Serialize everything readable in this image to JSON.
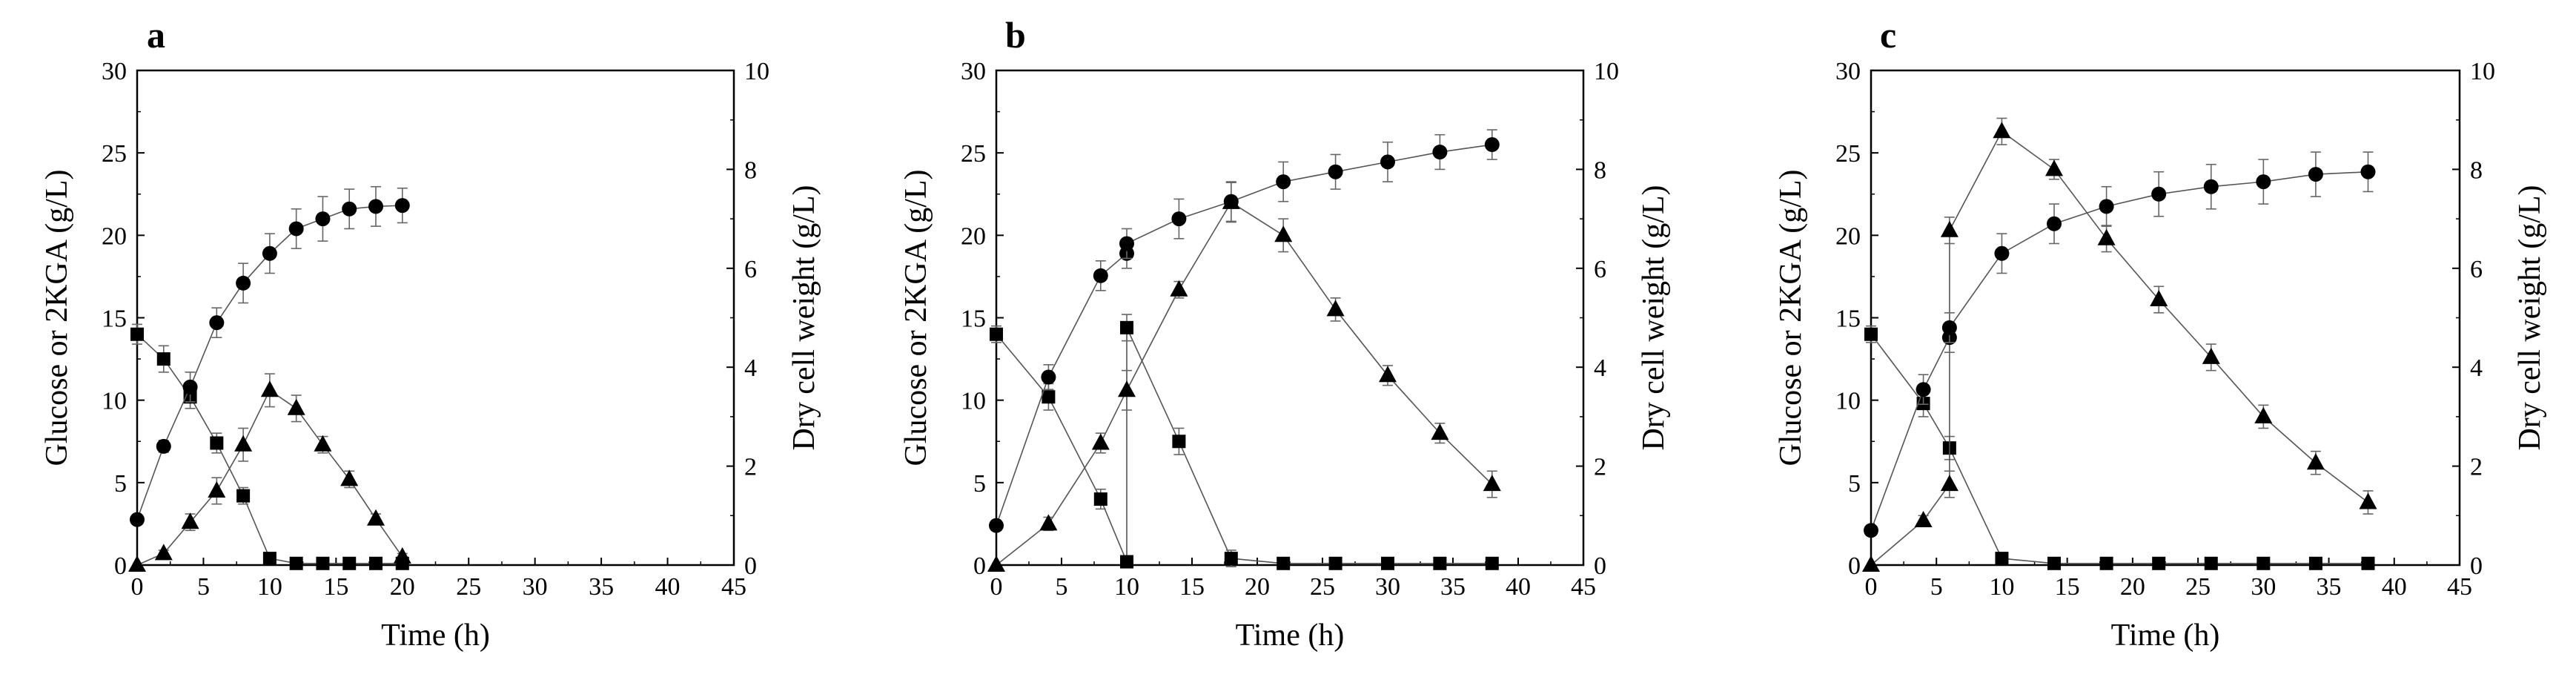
{
  "figure": {
    "panels": [
      "a",
      "b",
      "c"
    ]
  },
  "chart_data": [
    {
      "label": "a",
      "type": "scatter",
      "title": "",
      "xlabel": "Time (h)",
      "ylabel": "Glucose or 2KGA (g/L)",
      "y2label": "Dry cell weight (g/L)",
      "xlim": [
        0,
        45
      ],
      "ylim": [
        0,
        30
      ],
      "y2lim": [
        0,
        10
      ],
      "xticks": [
        "0",
        "5",
        "10",
        "15",
        "20",
        "25",
        "30",
        "35",
        "40",
        "45"
      ],
      "yticks": [
        "0",
        "5",
        "10",
        "15",
        "20",
        "25",
        "30"
      ],
      "y2ticks": [
        "0",
        "2",
        "4",
        "6",
        "8",
        "10"
      ],
      "series": [
        {
          "name": "Glucose",
          "marker": "square",
          "axis": "left",
          "x": [
            0,
            2,
            4,
            6,
            8,
            10,
            12,
            14,
            16,
            18,
            20
          ],
          "y": [
            14.0,
            12.5,
            10.2,
            7.4,
            4.2,
            0.4,
            0.1,
            0.1,
            0.1,
            0.1,
            0.1
          ],
          "err": [
            0.6,
            0.8,
            0.7,
            0.6,
            0.5,
            0.2,
            0,
            0,
            0,
            0,
            0
          ]
        },
        {
          "name": "2KGA",
          "marker": "triangle",
          "axis": "left",
          "x": [
            0,
            2,
            4,
            6,
            8,
            10,
            12,
            14,
            16,
            18,
            20
          ],
          "y": [
            0,
            0.7,
            2.6,
            4.5,
            7.3,
            10.6,
            9.5,
            7.3,
            5.2,
            2.8,
            0.5
          ],
          "err": [
            0,
            0.2,
            0.5,
            0.8,
            1.0,
            1.0,
            0.8,
            0.5,
            0.5,
            0.3,
            0.2
          ]
        },
        {
          "name": "Dry cell weight",
          "marker": "circle",
          "axis": "right",
          "x": [
            0,
            2,
            4,
            6,
            8,
            10,
            12,
            14,
            16,
            18,
            20
          ],
          "y": [
            0.92,
            2.4,
            3.6,
            4.9,
            5.7,
            6.3,
            6.8,
            7.0,
            7.2,
            7.25,
            7.27
          ],
          "err": [
            0.05,
            0.12,
            0.3,
            0.3,
            0.4,
            0.4,
            0.4,
            0.45,
            0.4,
            0.4,
            0.35
          ]
        }
      ]
    },
    {
      "label": "b",
      "type": "scatter",
      "title": "",
      "xlabel": "Time (h)",
      "ylabel": "Glucose or 2KGA (g/L)",
      "y2label": "Dry cell weight (g/L)",
      "xlim": [
        0,
        45
      ],
      "ylim": [
        0,
        30
      ],
      "y2lim": [
        0,
        10
      ],
      "xticks": [
        "0",
        "5",
        "10",
        "15",
        "20",
        "25",
        "30",
        "35",
        "40",
        "45"
      ],
      "yticks": [
        "0",
        "5",
        "10",
        "15",
        "20",
        "25",
        "30"
      ],
      "y2ticks": [
        "0",
        "2",
        "4",
        "6",
        "8",
        "10"
      ],
      "series": [
        {
          "name": "Glucose",
          "marker": "square",
          "axis": "left",
          "x": [
            0,
            4,
            8,
            10,
            10,
            14,
            18,
            22,
            26,
            30,
            34,
            38
          ],
          "y": [
            14.0,
            10.2,
            4.0,
            0.2,
            14.4,
            7.5,
            0.4,
            0.1,
            0.1,
            0.1,
            0.1,
            0.1
          ],
          "err": [
            0.5,
            0.8,
            0.6,
            0.1,
            0.8,
            0.8,
            0.5,
            0,
            0,
            0,
            0,
            0
          ]
        },
        {
          "name": "2KGA",
          "marker": "triangle",
          "axis": "left",
          "x": [
            0,
            4,
            8,
            10,
            14,
            18,
            22,
            26,
            30,
            34,
            38
          ],
          "y": [
            0,
            2.5,
            7.4,
            10.6,
            16.7,
            22.0,
            20.0,
            15.5,
            11.5,
            8.0,
            4.9
          ],
          "err": [
            0,
            0.4,
            0.6,
            1.2,
            0.5,
            1.2,
            1.0,
            0.7,
            0.6,
            0.6,
            0.8
          ]
        },
        {
          "name": "Dry cell weight",
          "marker": "circle",
          "axis": "right",
          "x": [
            0,
            4,
            8,
            10,
            10,
            14,
            18,
            22,
            26,
            30,
            34,
            38
          ],
          "y": [
            0.8,
            3.8,
            5.85,
            6.3,
            6.5,
            7.0,
            7.35,
            7.75,
            7.95,
            8.15,
            8.35,
            8.5
          ],
          "err": [
            0.1,
            0.25,
            0.3,
            0.3,
            0.3,
            0.4,
            0.4,
            0.4,
            0.35,
            0.4,
            0.35,
            0.3
          ]
        }
      ]
    },
    {
      "label": "c",
      "type": "scatter",
      "title": "",
      "xlabel": "Time (h)",
      "ylabel": "Glucose or 2KGA (g/L)",
      "y2label": "Dry cell weight (g/L)",
      "xlim": [
        0,
        45
      ],
      "ylim": [
        0,
        30
      ],
      "y2lim": [
        0,
        10
      ],
      "xticks": [
        "0",
        "5",
        "10",
        "15",
        "20",
        "25",
        "30",
        "35",
        "40",
        "45"
      ],
      "yticks": [
        "0",
        "5",
        "10",
        "15",
        "20",
        "25",
        "30"
      ],
      "y2ticks": [
        "0",
        "2",
        "4",
        "6",
        "8",
        "10"
      ],
      "series": [
        {
          "name": "Glucose",
          "marker": "square",
          "axis": "left",
          "x": [
            0,
            4,
            6,
            10,
            14,
            18,
            22,
            26,
            30,
            34,
            38
          ],
          "y": [
            14.0,
            9.8,
            7.1,
            0.4,
            0.1,
            0.1,
            0.1,
            0.1,
            0.1,
            0.1,
            0.1
          ],
          "err": [
            0.5,
            0.8,
            0.7,
            0.2,
            0,
            0,
            0,
            0,
            0,
            0,
            0
          ]
        },
        {
          "name": "2KGA",
          "marker": "triangle",
          "axis": "left",
          "x": [
            0,
            4,
            6,
            6,
            10,
            14,
            18,
            22,
            26,
            30,
            34,
            38
          ],
          "y": [
            0,
            2.7,
            4.9,
            20.3,
            26.3,
            24.0,
            19.8,
            16.1,
            12.6,
            9.0,
            6.2,
            3.8
          ],
          "err": [
            0,
            0.3,
            0.8,
            0.8,
            0.8,
            0.6,
            0.8,
            0.8,
            0.8,
            0.7,
            0.7,
            0.7
          ]
        },
        {
          "name": "Dry cell weight",
          "marker": "circle",
          "axis": "right",
          "x": [
            0,
            4,
            6,
            6,
            10,
            14,
            18,
            22,
            26,
            30,
            34,
            38
          ],
          "y": [
            0.7,
            3.55,
            4.6,
            4.8,
            6.3,
            6.9,
            7.25,
            7.5,
            7.65,
            7.75,
            7.9,
            7.95
          ],
          "err": [
            0.1,
            0.3,
            0.3,
            0.3,
            0.4,
            0.4,
            0.4,
            0.45,
            0.45,
            0.45,
            0.45,
            0.4
          ]
        }
      ]
    }
  ]
}
